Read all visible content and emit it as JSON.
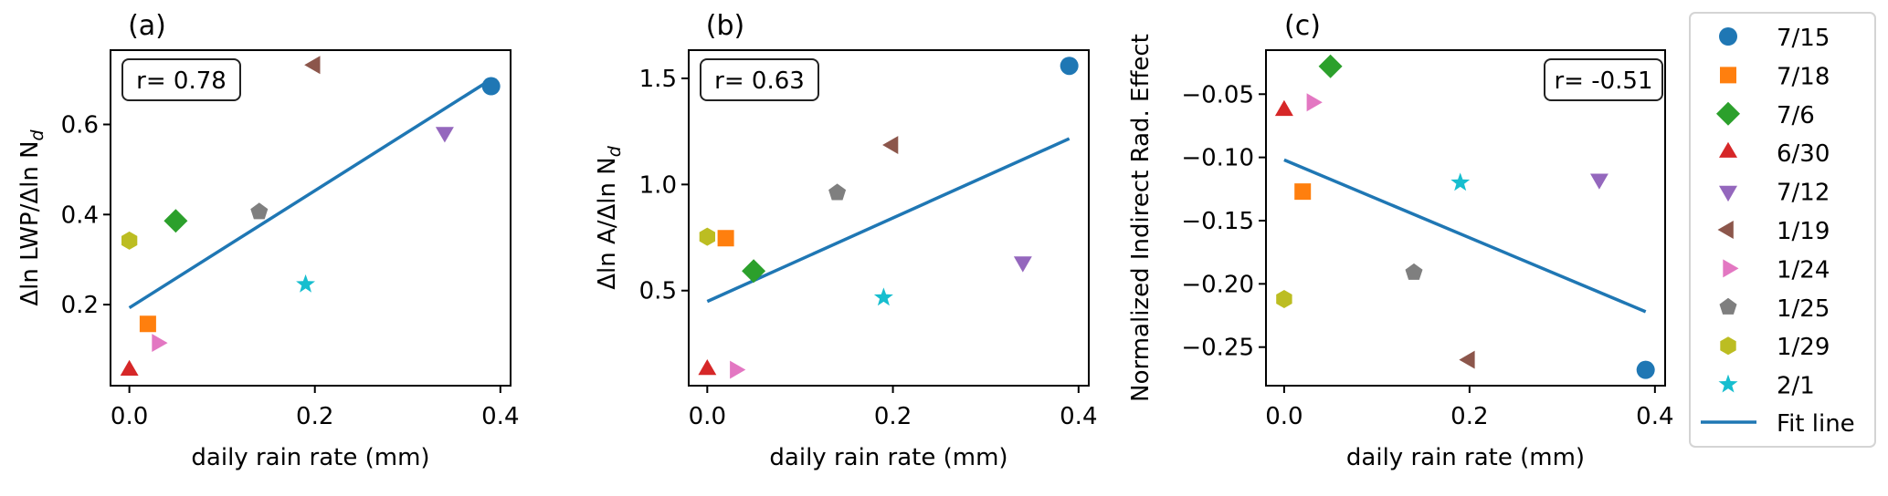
{
  "colors": {
    "7/15": "#1f77b4",
    "7/18": "#ff7f0e",
    "7/6": "#2ca02c",
    "6/30": "#d62728",
    "7/12": "#9467bd",
    "1/19": "#8c564b",
    "1/24": "#e377c2",
    "1/25": "#7f7f7f",
    "1/29": "#bcbd22",
    "2/1": "#17becf",
    "fit": "#1f77b4"
  },
  "chart_data": [
    {
      "type": "scatter",
      "title": "(a)",
      "xlabel": "daily rain rate (mm)",
      "ylabel": "Δln LWP/Δln N",
      "ylabel_sub": "d",
      "annotation": "r= 0.78",
      "annotation_placement": "top-left",
      "xlim": [
        -0.0203,
        0.411
      ],
      "ylim": [
        0.02,
        0.765
      ],
      "xticks": [
        0.0,
        0.2,
        0.4
      ],
      "xtick_labels": [
        "0.0",
        "0.2",
        "0.4"
      ],
      "yticks": [
        0.2,
        0.4,
        0.6
      ],
      "ytick_labels": [
        "0.2",
        "0.4",
        "0.6"
      ],
      "grid": false,
      "points": [
        {
          "label": "7/15",
          "marker": "circle",
          "x": 0.39,
          "y": 0.685
        },
        {
          "label": "7/18",
          "marker": "square",
          "x": 0.02,
          "y": 0.157
        },
        {
          "label": "7/6",
          "marker": "diamond",
          "x": 0.05,
          "y": 0.386
        },
        {
          "label": "6/30",
          "marker": "triangle-up",
          "x": 0.0,
          "y": 0.054
        },
        {
          "label": "7/12",
          "marker": "triangle-down",
          "x": 0.34,
          "y": 0.583
        },
        {
          "label": "1/19",
          "marker": "triangle-left",
          "x": 0.2,
          "y": 0.732
        },
        {
          "label": "1/24",
          "marker": "triangle-right",
          "x": 0.03,
          "y": 0.115
        },
        {
          "label": "1/25",
          "marker": "pentagon",
          "x": 0.14,
          "y": 0.406
        },
        {
          "label": "1/29",
          "marker": "hexagon",
          "x": 0.0,
          "y": 0.342
        },
        {
          "label": "2/1",
          "marker": "star",
          "x": 0.19,
          "y": 0.245
        }
      ],
      "fit_line": {
        "x": [
          0.0,
          0.39
        ],
        "y": [
          0.193,
          0.7
        ]
      }
    },
    {
      "type": "scatter",
      "title": "(b)",
      "xlabel": "daily rain rate (mm)",
      "ylabel": "Δln A/Δln N",
      "ylabel_sub": "d",
      "annotation": "r= 0.63",
      "annotation_placement": "top-left",
      "xlim": [
        -0.02,
        0.411
      ],
      "ylim": [
        0.052,
        1.633
      ],
      "xticks": [
        0.0,
        0.2,
        0.4
      ],
      "xtick_labels": [
        "0.0",
        "0.2",
        "0.4"
      ],
      "yticks": [
        0.5,
        1.0,
        1.5
      ],
      "ytick_labels": [
        "0.5",
        "1.0",
        "1.5"
      ],
      "grid": false,
      "points": [
        {
          "label": "7/15",
          "marker": "circle",
          "x": 0.39,
          "y": 1.559
        },
        {
          "label": "7/18",
          "marker": "square",
          "x": 0.02,
          "y": 0.747
        },
        {
          "label": "7/6",
          "marker": "diamond",
          "x": 0.05,
          "y": 0.592
        },
        {
          "label": "6/30",
          "marker": "triangle-up",
          "x": 0.0,
          "y": 0.127
        },
        {
          "label": "7/12",
          "marker": "triangle-down",
          "x": 0.34,
          "y": 0.636
        },
        {
          "label": "1/19",
          "marker": "triangle-left",
          "x": 0.2,
          "y": 1.186
        },
        {
          "label": "1/24",
          "marker": "triangle-right",
          "x": 0.03,
          "y": 0.127
        },
        {
          "label": "1/25",
          "marker": "pentagon",
          "x": 0.14,
          "y": 0.961
        },
        {
          "label": "1/29",
          "marker": "hexagon",
          "x": 0.0,
          "y": 0.754
        },
        {
          "label": "2/1",
          "marker": "star",
          "x": 0.19,
          "y": 0.467
        }
      ],
      "fit_line": {
        "x": [
          0.0,
          0.39
        ],
        "y": [
          0.449,
          1.216
        ]
      }
    },
    {
      "type": "scatter",
      "title": "(c)",
      "xlabel": "daily rain rate (mm)",
      "ylabel": "Normalized Indirect Rad. Effect",
      "ylabel_sub": "",
      "annotation": "r= -0.51",
      "annotation_placement": "top-right",
      "xlim": [
        -0.0196,
        0.411
      ],
      "ylim": [
        -0.2805,
        -0.0152
      ],
      "xticks": [
        0.0,
        0.2,
        0.4
      ],
      "xtick_labels": [
        "0.0",
        "0.2",
        "0.4"
      ],
      "yticks": [
        -0.25,
        -0.2,
        -0.15,
        -0.1,
        -0.05
      ],
      "ytick_labels": [
        "−0.25",
        "−0.20",
        "−0.15",
        "−0.10",
        "−0.05"
      ],
      "grid": false,
      "points": [
        {
          "label": "7/15",
          "marker": "circle",
          "x": 0.39,
          "y": -0.268
        },
        {
          "label": "7/18",
          "marker": "square",
          "x": 0.02,
          "y": -0.127
        },
        {
          "label": "7/6",
          "marker": "diamond",
          "x": 0.05,
          "y": -0.028
        },
        {
          "label": "6/30",
          "marker": "triangle-up",
          "x": 0.0,
          "y": -0.063
        },
        {
          "label": "7/12",
          "marker": "triangle-down",
          "x": 0.34,
          "y": -0.117
        },
        {
          "label": "1/19",
          "marker": "triangle-left",
          "x": 0.2,
          "y": -0.26
        },
        {
          "label": "1/24",
          "marker": "triangle-right",
          "x": 0.03,
          "y": -0.0565
        },
        {
          "label": "1/25",
          "marker": "pentagon",
          "x": 0.14,
          "y": -0.191
        },
        {
          "label": "1/29",
          "marker": "hexagon",
          "x": 0.0,
          "y": -0.212
        },
        {
          "label": "2/1",
          "marker": "star",
          "x": 0.19,
          "y": -0.12
        }
      ],
      "fit_line": {
        "x": [
          0.0,
          0.39
        ],
        "y": [
          -0.102,
          -0.222
        ]
      }
    }
  ],
  "legend": {
    "placement": "right",
    "entries": [
      {
        "label": "7/15",
        "marker": "circle"
      },
      {
        "label": "7/18",
        "marker": "square"
      },
      {
        "label": "7/6",
        "marker": "diamond"
      },
      {
        "label": "6/30",
        "marker": "triangle-up"
      },
      {
        "label": "7/12",
        "marker": "triangle-down"
      },
      {
        "label": "1/19",
        "marker": "triangle-left"
      },
      {
        "label": "1/24",
        "marker": "triangle-right"
      },
      {
        "label": "1/25",
        "marker": "pentagon"
      },
      {
        "label": "1/29",
        "marker": "hexagon"
      },
      {
        "label": "2/1",
        "marker": "star"
      }
    ],
    "fit_label": "Fit line"
  }
}
